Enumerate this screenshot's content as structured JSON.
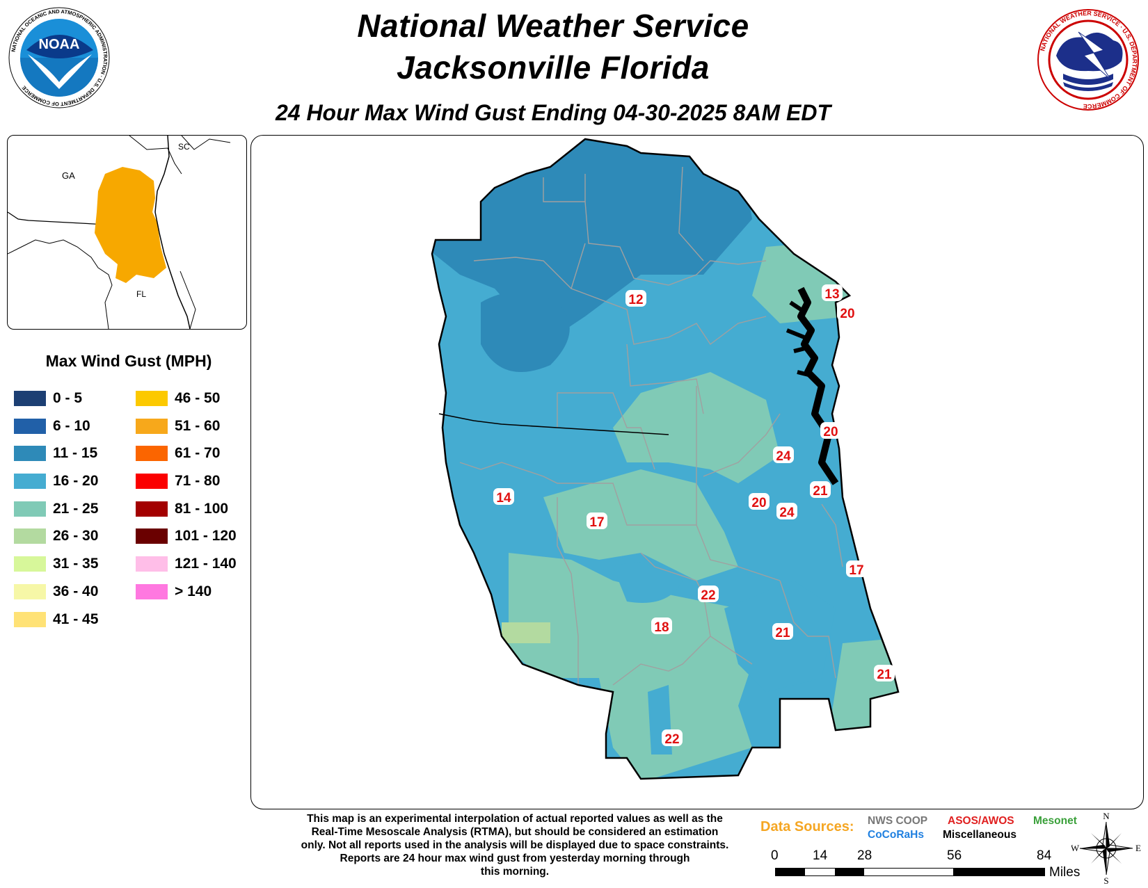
{
  "header": {
    "title_line1": "National Weather Service",
    "title_line2": "Jacksonville Florida",
    "subtitle": "24 Hour Max Wind Gust Ending 04-30-2025 8AM EDT"
  },
  "logos": {
    "noaa": {
      "text": "NOAA",
      "ring_text": "NATIONAL OCEANIC AND ATMOSPHERIC ADMINISTRATION · U.S. DEPARTMENT OF COMMERCE"
    },
    "nws": {
      "ring_text": "NATIONAL WEATHER SERVICE · U.S. DEPARTMENT OF COMMERCE"
    }
  },
  "inset_map": {
    "labels": {
      "ga": "GA",
      "sc": "SC",
      "fl": "FL"
    },
    "highlight_color": "#f7a800"
  },
  "legend": {
    "title": "Max Wind Gust (MPH)",
    "items": [
      {
        "label": "0 - 5",
        "color": "#1c3f73"
      },
      {
        "label": "6 - 10",
        "color": "#2160a8"
      },
      {
        "label": "11 - 15",
        "color": "#2e8ab8"
      },
      {
        "label": "16 - 20",
        "color": "#45acd1"
      },
      {
        "label": "21 - 25",
        "color": "#80cab6"
      },
      {
        "label": "26 - 30",
        "color": "#b3daa0"
      },
      {
        "label": "31 - 35",
        "color": "#d7f79a"
      },
      {
        "label": "36 - 40",
        "color": "#f6f7a7"
      },
      {
        "label": "41 - 45",
        "color": "#ffe276"
      },
      {
        "label": "46 - 50",
        "color": "#fcc900"
      },
      {
        "label": "51 - 60",
        "color": "#f7a81b"
      },
      {
        "label": "61 - 70",
        "color": "#fb6500"
      },
      {
        "label": "71 - 80",
        "color": "#fb0000"
      },
      {
        "label": "81 - 100",
        "color": "#a30000"
      },
      {
        "label": "101 - 120",
        "color": "#6a0000"
      },
      {
        "label": "121 - 140",
        "color": "#ffbee8"
      },
      {
        "label": "> 140",
        "color": "#ff78e0"
      }
    ]
  },
  "stations": [
    {
      "value": "12",
      "lon_lat_hint": "Alachua"
    },
    {
      "value": "13",
      "lon_lat_hint": "Fernandina"
    },
    {
      "value": "20",
      "lon_lat_hint": "Jacksonville Beach North"
    },
    {
      "value": "20",
      "lon_lat_hint": "St Augustine North"
    },
    {
      "value": "24",
      "lon_lat_hint": "Putnam East"
    },
    {
      "value": "21",
      "lon_lat_hint": "St Johns Coast"
    },
    {
      "value": "14",
      "lon_lat_hint": "Suwannee West"
    },
    {
      "value": "17",
      "lon_lat_hint": "Columbia South"
    },
    {
      "value": "20",
      "lon_lat_hint": "Putnam"
    },
    {
      "value": "24",
      "lon_lat_hint": "Flagler North"
    },
    {
      "value": "17",
      "lon_lat_hint": "Flagler Coast"
    },
    {
      "value": "22",
      "lon_lat_hint": "Marion North"
    },
    {
      "value": "18",
      "lon_lat_hint": "Alachua South"
    },
    {
      "value": "21",
      "lon_lat_hint": "Volusia North"
    },
    {
      "value": "21",
      "lon_lat_hint": "Volusia Coast"
    },
    {
      "value": "22",
      "lon_lat_hint": "Marion South"
    }
  ],
  "disclaimer": {
    "line1": "This map is an experimental interpolation of actual reported values as well as the",
    "line2": "Real-Time Mesoscale Analysis (RTMA), but should be considered an estimation",
    "line3": "only. Not all reports used in the analysis will be displayed due to space constraints.",
    "line4": "Reports are 24 hour max wind gust from yesterday morning through",
    "line5": "this morning."
  },
  "data_sources": {
    "label": "Data Sources:",
    "nws_coop": {
      "text": "NWS COOP",
      "color": "#777777"
    },
    "asos_awos": {
      "text": "ASOS/AWOS",
      "color": "#e02020"
    },
    "mesonet": {
      "text": "Mesonet",
      "color": "#3aa03a"
    },
    "cocorahs": {
      "text": "CoCoRaHs",
      "color": "#2080e0"
    },
    "misc": {
      "text": "Miscellaneous",
      "color": "#000000"
    }
  },
  "scale_bar": {
    "ticks": [
      "0",
      "14",
      "28",
      "56",
      "84"
    ],
    "unit": "Miles"
  },
  "compass": {
    "n": "N",
    "s": "S",
    "e": "E",
    "w": "W"
  }
}
